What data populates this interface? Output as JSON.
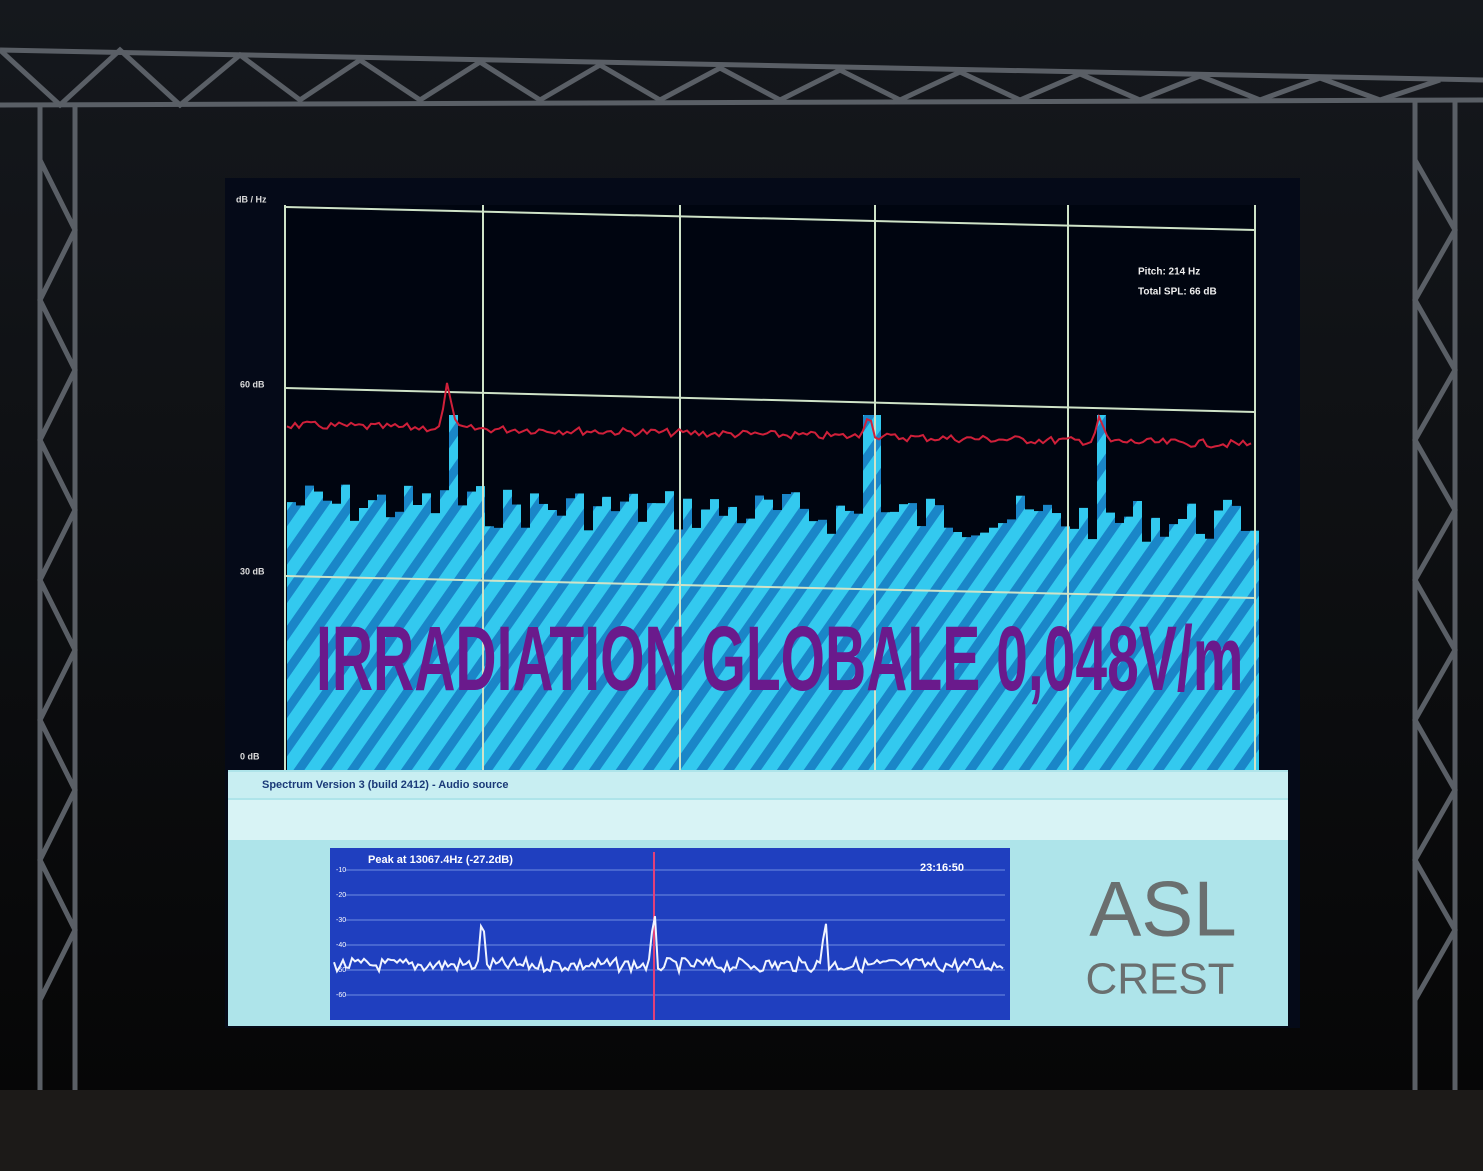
{
  "upper_plot": {
    "unit_label": "dB / Hz",
    "y_labels": [
      "60 dB",
      "30 dB",
      "0 dB"
    ],
    "readout": [
      "Pitch: 214 Hz",
      "Total SPL: 66 dB"
    ]
  },
  "overlay_text": "IRRADIATION GLOBALE  0,048V/m",
  "window_title": "Spectrum Version 3 (build 2412) - Audio source",
  "lower_plot": {
    "peak": "Peak at 13067.4Hz (-27.2dB)",
    "time": "23:16:50",
    "y_labels": [
      "-10",
      "-20",
      "-30",
      "-40",
      "-50",
      "-60"
    ]
  },
  "logo": {
    "line1": "ASL",
    "line2": "CREST"
  }
}
